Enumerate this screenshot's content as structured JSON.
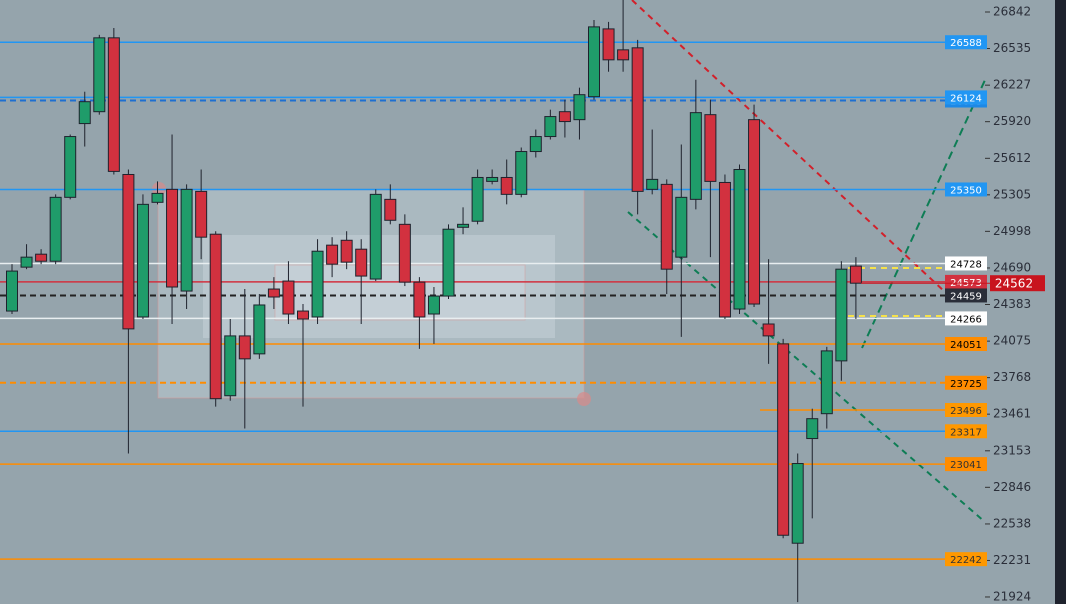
{
  "chart_data": {
    "type": "candlestick",
    "ylim": [
      21865,
      26943
    ],
    "yticks": [
      26842,
      26535,
      26227,
      25920,
      25612,
      25305,
      24998,
      24690,
      24383,
      24075,
      23768,
      23461,
      23153,
      22846,
      22538,
      22231,
      21924
    ],
    "up_color": "#1f9c6a",
    "down_color": "#d2313f",
    "open": [
      24328,
      24697,
      24806,
      24747,
      25284,
      25904,
      26004,
      26625,
      25476,
      24278,
      25242,
      25351,
      24496,
      25334,
      24974,
      23616,
      24119,
      23968,
      24513,
      24580,
      24328,
      24278,
      24882,
      24923,
      24848,
      24597,
      25267,
      25057,
      24571,
      24303,
      24454,
      25032,
      25083,
      25418,
      25451,
      25309,
      25669,
      25795,
      26004,
      25937,
      26130,
      26700,
      26524,
      26541,
      25351,
      25393,
      24781,
      25267,
      25979,
      25409,
      24345,
      25937,
      24219,
      24052,
      22376,
      23256,
      23465,
      23909,
      24706
    ],
    "high": [
      24722,
      24890,
      24848,
      25309,
      25812,
      26172,
      26650,
      26708,
      25518,
      25309,
      25418,
      25812,
      25393,
      25518,
      24999,
      24261,
      24513,
      24471,
      24613,
      24747,
      24387,
      24932,
      24949,
      24999,
      24932,
      25351,
      25393,
      25141,
      24613,
      24530,
      25057,
      25200,
      25518,
      25518,
      25602,
      25703,
      25854,
      26021,
      26105,
      26206,
      26775,
      26759,
      26943,
      26608,
      25854,
      25435,
      25728,
      26273,
      26105,
      25476,
      25560,
      26063,
      24764,
      24094,
      23130,
      23507,
      24027,
      24747,
      24781
    ],
    "low": [
      24303,
      24680,
      24722,
      24722,
      25267,
      25711,
      25979,
      25476,
      23130,
      24261,
      25225,
      24219,
      24345,
      24764,
      23524,
      23574,
      23340,
      23926,
      24345,
      24219,
      23524,
      24219,
      24613,
      24680,
      24219,
      24580,
      25057,
      24538,
      24010,
      24052,
      24429,
      24974,
      25057,
      25393,
      25225,
      25284,
      25619,
      25770,
      25787,
      25770,
      26105,
      26340,
      26340,
      25141,
      25309,
      24471,
      24111,
      25183,
      24781,
      24261,
      24303,
      24362,
      23884,
      22418,
      21881,
      22585,
      23340,
      23742,
      24261
    ],
    "close": [
      24664,
      24781,
      24747,
      25284,
      25795,
      26088,
      26625,
      25502,
      24178,
      25225,
      25317,
      24530,
      25351,
      24949,
      23591,
      24119,
      23926,
      24379,
      24446,
      24303,
      24261,
      24831,
      24722,
      24739,
      24622,
      25309,
      25091,
      24571,
      24278,
      24454,
      25016,
      25057,
      25451,
      25451,
      25309,
      25669,
      25795,
      25963,
      25921,
      26147,
      26717,
      26440,
      26440,
      25334,
      25435,
      24680,
      25284,
      25996,
      25418,
      24278,
      25518,
      24387,
      24119,
      22443,
      23046,
      23423,
      23993,
      24680,
      24562
    ],
    "levels": [
      {
        "value": 26588,
        "color": "#2196f3",
        "label_bg": "#2196f3",
        "label_fg": "#ffffff",
        "dashed": false
      },
      {
        "value": 26098,
        "color": "#1e6fd0",
        "label_bg": "#1e88e5",
        "label_fg": "#ffffff",
        "dashed": true
      },
      {
        "value": 26124,
        "color": "#2196f3",
        "label_bg": "#2196f3",
        "label_fg": "#ffffff",
        "dashed": false
      },
      {
        "value": 25350,
        "color": "#2196f3",
        "label_bg": "#2196f3",
        "label_fg": "#ffffff",
        "dashed": false
      },
      {
        "value": 24728,
        "color": "#e8eef0",
        "label_bg": "#ffffff",
        "label_fg": "#000000",
        "dashed": false
      },
      {
        "value": 24573,
        "color": "#d2313f",
        "label_bg": "#d2313f",
        "label_fg": "#ffffff",
        "dashed": false
      },
      {
        "value": 24459,
        "color": "#222222",
        "label_bg": "#2a2e39",
        "label_fg": "#ffffff",
        "dashed": true
      },
      {
        "value": 24266,
        "color": "#e8eef0",
        "label_bg": "#ffffff",
        "label_fg": "#000000",
        "dashed": false
      },
      {
        "value": 24051,
        "color": "#ff8c00",
        "label_bg": "#ff8c00",
        "label_fg": "#000000",
        "dashed": false
      },
      {
        "value": 23725,
        "color": "#ff8c00",
        "label_bg": "#ff8c00",
        "label_fg": "#000000",
        "dashed": true
      },
      {
        "value": 23496,
        "color": "#ff8c00",
        "label_bg": "#ff9800",
        "label_fg": "#333333",
        "dashed": false
      },
      {
        "value": 23317,
        "color": "#2196f3",
        "label_bg": "#ff9800",
        "label_fg": "#333333",
        "dashed": false
      },
      {
        "value": 23041,
        "color": "#ff8c00",
        "label_bg": "#ff8c00",
        "label_fg": "#333333",
        "dashed": false
      },
      {
        "value": 22242,
        "color": "#ff8c00",
        "label_bg": "#ff9800",
        "label_fg": "#333333",
        "dashed": false
      }
    ],
    "last_price": 24562,
    "last_color": "#c8141e"
  }
}
